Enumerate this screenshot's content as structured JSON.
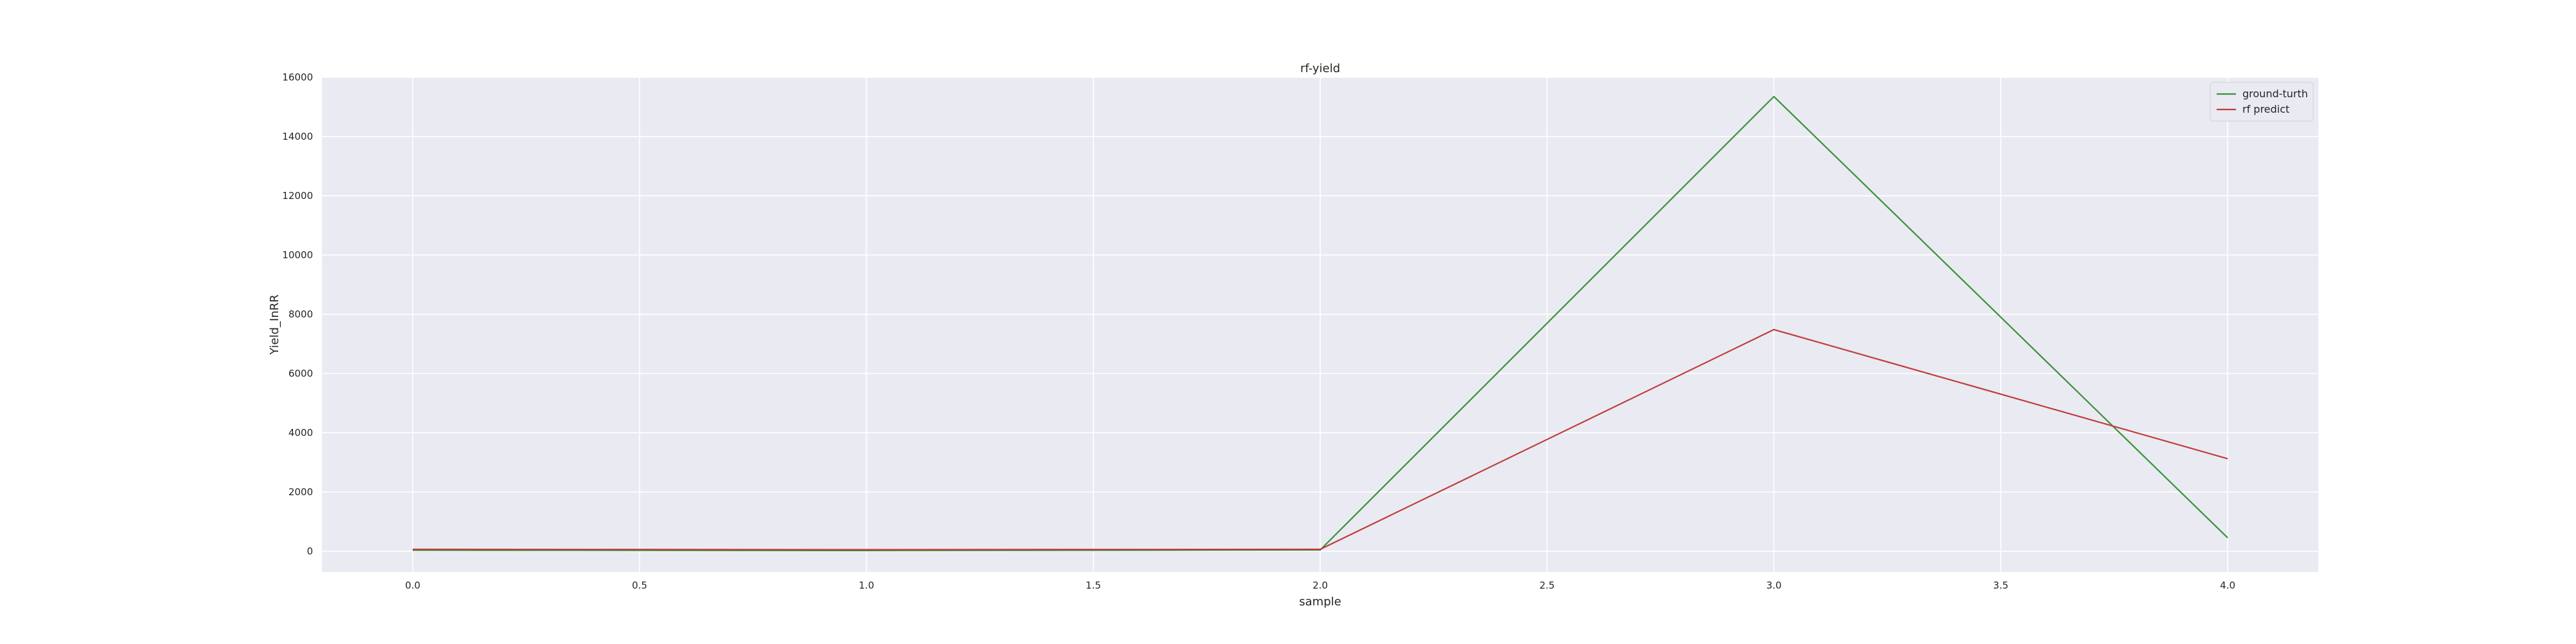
{
  "chart_data": {
    "type": "line",
    "title": "rf-yield",
    "xlabel": "sample",
    "ylabel": "Yield_InRR",
    "x": [
      0,
      1,
      2,
      3,
      4
    ],
    "series": [
      {
        "name": "ground-turth",
        "values": [
          30,
          20,
          40,
          15350,
          450
        ],
        "color": "#3a923a"
      },
      {
        "name": "rf predict",
        "values": [
          60,
          50,
          60,
          7480,
          3120
        ],
        "color": "#c03d3e"
      }
    ],
    "xlim": [
      -0.2,
      4.2
    ],
    "ylim": [
      -700,
      16000
    ],
    "xticks": [
      "0.0",
      "0.5",
      "1.0",
      "1.5",
      "2.0",
      "2.5",
      "3.0",
      "3.5",
      "4.0"
    ],
    "yticks": [
      "0",
      "2000",
      "4000",
      "6000",
      "8000",
      "10000",
      "12000",
      "14000",
      "16000"
    ],
    "grid": true,
    "legend_position": "top-right",
    "plot_background": "#eaeaf2",
    "grid_color": "#ffffff"
  }
}
